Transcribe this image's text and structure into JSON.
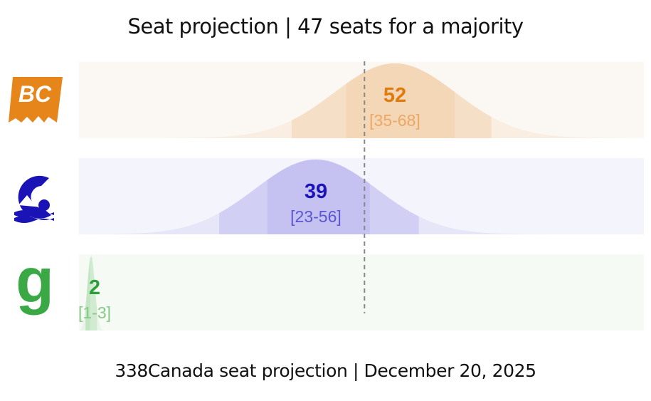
{
  "title": "Seat projection | 47 seats for a majority",
  "footer": "338Canada seat projection | December 20, 2025",
  "logos": [
    {
      "icon": "bc-conservatives-logo",
      "text": "BC"
    },
    {
      "icon": "bc-ndp-logo"
    },
    {
      "icon": "bc-greens-logo",
      "text": "g"
    }
  ],
  "chart_data": {
    "type": "area",
    "title": "Seat projection | 47 seats for a majority",
    "majority_line": 47,
    "xlim": [
      0,
      93
    ],
    "series": [
      {
        "projection": 52,
        "label": "52",
        "range_label": "[35-68]",
        "low": 35,
        "high": 68,
        "inner_low": 44,
        "inner_high": 62,
        "color": "#e07b10",
        "light": "#f3d4b0",
        "range_color": "#eda765",
        "bg": "#fbf7f2"
      },
      {
        "projection": 39,
        "label": "39",
        "range_label": "[23-56]",
        "low": 23,
        "high": 56,
        "inner_low": 31,
        "inner_high": 48,
        "color": "#1b14b9",
        "light": "#c0bdf0",
        "range_color": "#5a55d2",
        "bg": "#f4f4fd"
      },
      {
        "projection": 2,
        "label": "2",
        "range_label": "[1-3]",
        "low": 1,
        "high": 3,
        "inner_low": 1,
        "inner_high": 2,
        "color": "#2e9e3a",
        "light": "#bfe3bf",
        "range_color": "#86c986",
        "bg": "#f5faf4"
      }
    ]
  }
}
